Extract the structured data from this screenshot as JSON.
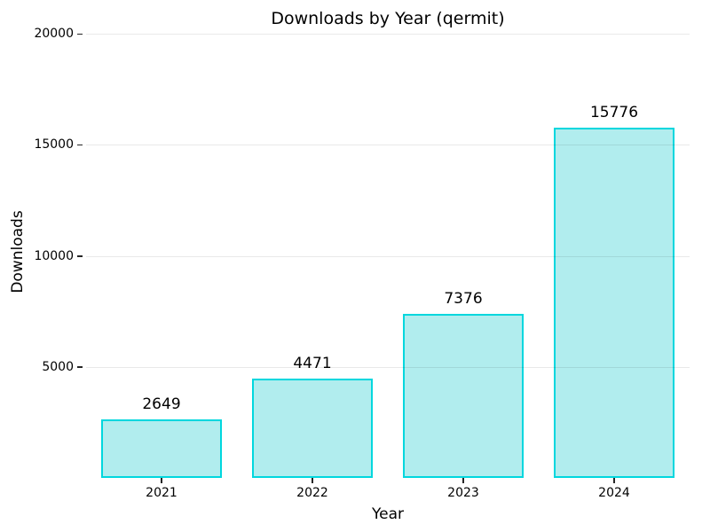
{
  "chart_data": {
    "type": "bar",
    "title": "Downloads by Year (qermit)",
    "xlabel": "Year",
    "ylabel": "Downloads",
    "categories": [
      "2021",
      "2022",
      "2023",
      "2024"
    ],
    "values": [
      2649,
      4471,
      7376,
      15776
    ],
    "bar_labels": [
      "2649",
      "4471",
      "7376",
      "15776"
    ],
    "yticks": [
      5000,
      10000,
      15000,
      20000
    ],
    "ylim": [
      0,
      20330
    ],
    "grid": "horizontal-only",
    "legend": "none",
    "colors": {
      "bar_fill": "#b1edee",
      "bar_edge": "#00d7de",
      "gridline": "#e8e8e8",
      "tick": "#262626",
      "text": "#000000",
      "background": "#ffffff"
    }
  }
}
